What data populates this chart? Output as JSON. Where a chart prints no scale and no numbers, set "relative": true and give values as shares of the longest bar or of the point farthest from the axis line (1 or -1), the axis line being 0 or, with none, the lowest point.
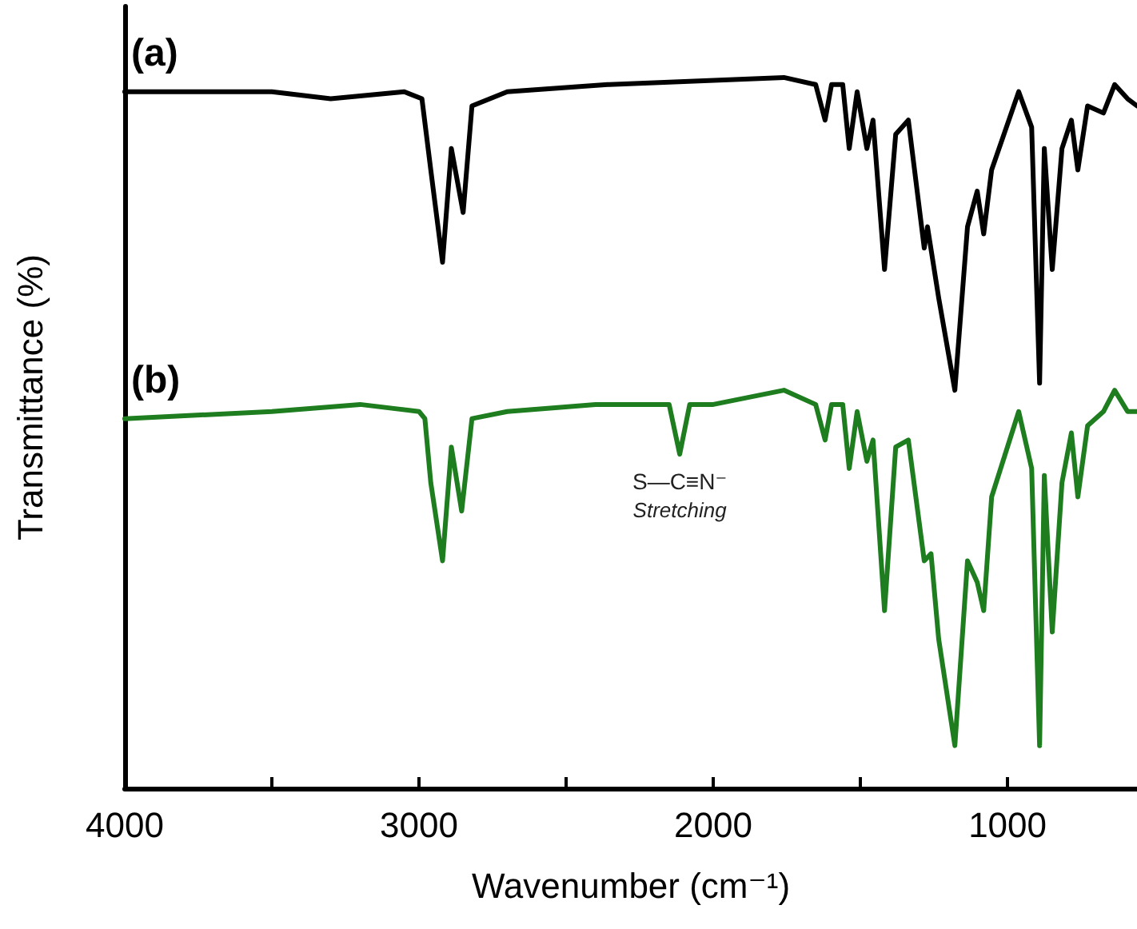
{
  "chart_data": {
    "type": "line",
    "relative": true,
    "xlabel": "Wavenumber (cm⁻¹)",
    "ylabel": "Transmittance (%)",
    "xlim": [
      4000,
      560
    ],
    "xticks": [
      4000,
      {
        "value": 3500,
        "label": null
      },
      3000,
      {
        "value": 2500,
        "label": null
      },
      2000,
      {
        "value": 1500,
        "label": null
      },
      1000
    ],
    "grid": false,
    "legend": false,
    "marker": "none",
    "line_style": "solid",
    "annotations": [
      {
        "text": "S—C≡N⁻\nStretching",
        "x": 2114,
        "y": 0.47
      }
    ],
    "series": [
      {
        "name": "(a)",
        "color": "#000000",
        "x": [
          4000,
          3500,
          3300,
          3050,
          2990,
          2960,
          2920,
          2890,
          2850,
          2820,
          2700,
          2359,
          1760,
          1652,
          1620,
          1598,
          1560,
          1538,
          1511,
          1478,
          1457,
          1418,
          1380,
          1337,
          1283,
          1272,
          1234,
          1179,
          1136,
          1103,
          1081,
          1054,
          962,
          918,
          891,
          875,
          848,
          815,
          783,
          761,
          728,
          674,
          636,
          592,
          560
        ],
        "values": [
          0.98,
          0.98,
          0.97,
          0.98,
          0.97,
          0.87,
          0.74,
          0.9,
          0.81,
          0.96,
          0.98,
          0.99,
          1.0,
          0.99,
          0.94,
          0.99,
          0.99,
          0.9,
          0.98,
          0.9,
          0.94,
          0.73,
          0.92,
          0.94,
          0.76,
          0.79,
          0.69,
          0.56,
          0.79,
          0.84,
          0.78,
          0.87,
          0.98,
          0.93,
          0.57,
          0.9,
          0.73,
          0.9,
          0.94,
          0.87,
          0.96,
          0.95,
          0.99,
          0.97,
          0.96
        ]
      },
      {
        "name": "(b)",
        "color": "#1e7d1e",
        "x": [
          4000,
          3500,
          3200,
          3000,
          2980,
          2960,
          2920,
          2890,
          2855,
          2820,
          2700,
          2400,
          2150,
          2114,
          2080,
          2000,
          1760,
          1652,
          1620,
          1598,
          1560,
          1538,
          1511,
          1478,
          1457,
          1418,
          1380,
          1337,
          1283,
          1260,
          1234,
          1179,
          1136,
          1103,
          1081,
          1054,
          962,
          918,
          891,
          875,
          848,
          815,
          783,
          761,
          728,
          674,
          636,
          592,
          560
        ],
        "values": [
          0.52,
          0.53,
          0.54,
          0.53,
          0.52,
          0.43,
          0.32,
          0.48,
          0.39,
          0.52,
          0.53,
          0.54,
          0.54,
          0.47,
          0.54,
          0.54,
          0.56,
          0.54,
          0.49,
          0.54,
          0.54,
          0.45,
          0.53,
          0.46,
          0.49,
          0.25,
          0.48,
          0.49,
          0.32,
          0.33,
          0.21,
          0.06,
          0.32,
          0.29,
          0.25,
          0.41,
          0.53,
          0.45,
          0.06,
          0.44,
          0.22,
          0.43,
          0.5,
          0.41,
          0.51,
          0.53,
          0.56,
          0.53,
          0.53
        ]
      }
    ]
  }
}
